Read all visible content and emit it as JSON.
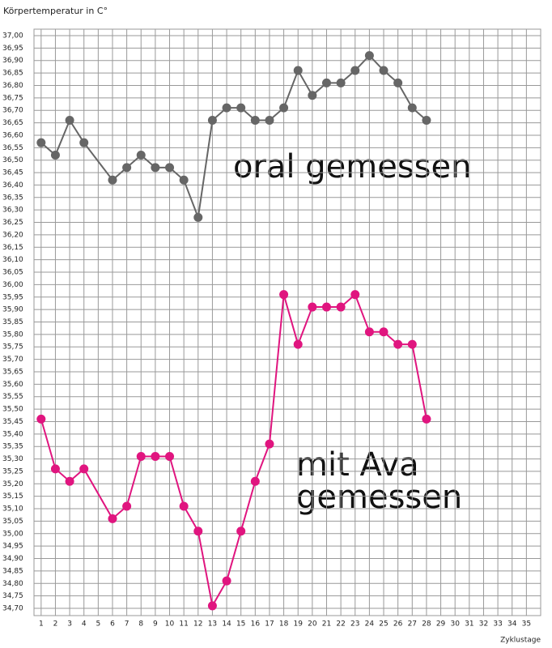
{
  "chart_data": {
    "type": "line",
    "title": "Körpertemperatur in C°",
    "x_label": "Zyklustage",
    "annotations": [
      "oral gemessen",
      "mit Ava",
      "gemessen"
    ],
    "x": [
      1,
      2,
      3,
      4,
      6,
      7,
      8,
      9,
      10,
      11,
      12,
      13,
      14,
      15,
      16,
      17,
      18,
      19,
      20,
      21,
      22,
      23,
      24,
      25,
      26,
      27,
      28
    ],
    "series": [
      {
        "color": "#666666",
        "values": [
          36.57,
          36.52,
          36.66,
          36.57,
          36.42,
          36.47,
          36.52,
          36.47,
          36.47,
          36.42,
          36.27,
          36.66,
          36.71,
          36.71,
          36.66,
          36.66,
          36.71,
          36.86,
          36.76,
          36.81,
          36.81,
          36.86,
          36.92,
          36.86,
          36.81,
          36.71,
          36.66
        ]
      },
      {
        "color": "#e0157f",
        "values": [
          35.46,
          35.26,
          35.21,
          35.26,
          35.06,
          35.11,
          35.31,
          35.31,
          35.31,
          35.11,
          35.01,
          34.71,
          34.81,
          35.01,
          35.21,
          35.36,
          35.96,
          35.76,
          35.91,
          35.91,
          35.91,
          35.96,
          35.81,
          35.81,
          35.76,
          35.76,
          35.46
        ]
      }
    ],
    "xlim": [
      0.5,
      36
    ],
    "xticks": [
      1,
      2,
      3,
      4,
      5,
      6,
      7,
      8,
      9,
      10,
      11,
      12,
      13,
      14,
      15,
      16,
      17,
      18,
      19,
      20,
      21,
      22,
      23,
      24,
      25,
      26,
      27,
      28,
      29,
      30,
      31,
      32,
      33,
      34,
      35
    ],
    "ylim": [
      34.7,
      37.0
    ],
    "yticks": [
      {
        "value": 34.7,
        "label": "34,70"
      },
      {
        "value": 34.75,
        "label": "34,75"
      },
      {
        "value": 34.8,
        "label": "34,80"
      },
      {
        "value": 34.85,
        "label": "34,85"
      },
      {
        "value": 34.9,
        "label": "34,90"
      },
      {
        "value": 34.95,
        "label": "34,95"
      },
      {
        "value": 35.0,
        "label": "35,00"
      },
      {
        "value": 35.05,
        "label": "35,05"
      },
      {
        "value": 35.1,
        "label": "35,10"
      },
      {
        "value": 35.15,
        "label": "35,15"
      },
      {
        "value": 35.2,
        "label": "35,20"
      },
      {
        "value": 35.25,
        "label": "35,25"
      },
      {
        "value": 35.3,
        "label": "35,30"
      },
      {
        "value": 35.35,
        "label": "35,35"
      },
      {
        "value": 35.4,
        "label": "35,40"
      },
      {
        "value": 35.45,
        "label": "35,45"
      },
      {
        "value": 35.5,
        "label": "35,50"
      },
      {
        "value": 35.55,
        "label": "35,55"
      },
      {
        "value": 35.6,
        "label": "35,60"
      },
      {
        "value": 35.65,
        "label": "35,65"
      },
      {
        "value": 35.7,
        "label": "35,70"
      },
      {
        "value": 35.75,
        "label": "35,75"
      },
      {
        "value": 35.8,
        "label": "35,80"
      },
      {
        "value": 35.85,
        "label": "35,85"
      },
      {
        "value": 35.9,
        "label": "35,90"
      },
      {
        "value": 35.95,
        "label": "35,95"
      },
      {
        "value": 36.0,
        "label": "36,00"
      },
      {
        "value": 36.05,
        "label": "36,05"
      },
      {
        "value": 36.1,
        "label": "36,10"
      },
      {
        "value": 36.15,
        "label": "36,15"
      },
      {
        "value": 36.2,
        "label": "36,20"
      },
      {
        "value": 36.25,
        "label": "36,25"
      },
      {
        "value": 36.3,
        "label": "36,30"
      },
      {
        "value": 36.35,
        "label": "36,35"
      },
      {
        "value": 36.4,
        "label": "36,40"
      },
      {
        "value": 36.45,
        "label": "36,45"
      },
      {
        "value": 36.5,
        "label": "36,50"
      },
      {
        "value": 36.55,
        "label": "36,55"
      },
      {
        "value": 36.6,
        "label": "36,60"
      },
      {
        "value": 36.65,
        "label": "36,65"
      },
      {
        "value": 36.7,
        "label": "36,70"
      },
      {
        "value": 36.75,
        "label": "36,75"
      },
      {
        "value": 36.8,
        "label": "36,80"
      },
      {
        "value": 36.85,
        "label": "36,85"
      },
      {
        "value": 36.9,
        "label": "36,90"
      },
      {
        "value": 36.95,
        "label": "36,95"
      },
      {
        "value": 37.0,
        "label": "37,00"
      }
    ],
    "grid": true
  }
}
